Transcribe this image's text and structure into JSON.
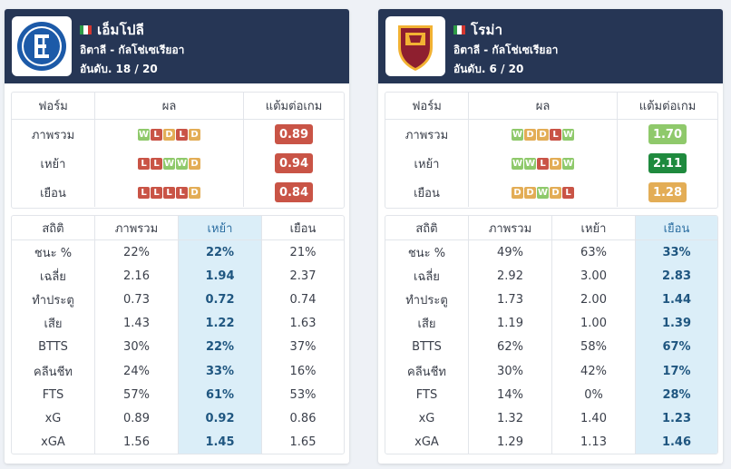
{
  "teams": [
    {
      "name": "เอ็มโปลี",
      "league": "อิตาลี - กัลโช่เซเรียอา",
      "rank": "อันดับ. 18 / 20",
      "logo_text": "EMPOLI F.C.",
      "form_headers": [
        "ฟอร์ม",
        "ผล",
        "แต้มต่อเกม"
      ],
      "form_rows": [
        {
          "label": "ภาพรวม",
          "results": [
            "W",
            "L",
            "D",
            "L",
            "D"
          ],
          "ppg": "0.89",
          "ppg_color": "#c95446"
        },
        {
          "label": "เหย้า",
          "results": [
            "L",
            "L",
            "W",
            "W",
            "D"
          ],
          "ppg": "0.94",
          "ppg_color": "#c95446"
        },
        {
          "label": "เยือน",
          "results": [
            "L",
            "L",
            "L",
            "L",
            "D"
          ],
          "ppg": "0.84",
          "ppg_color": "#c95446"
        }
      ],
      "stat_headers": [
        "สถิติ",
        "ภาพรวม",
        "เหย้า",
        "เยือน"
      ],
      "highlight_col": 2,
      "stats": [
        [
          "ชนะ %",
          "22%",
          "22%",
          "21%"
        ],
        [
          "เฉลี่ย",
          "2.16",
          "1.94",
          "2.37"
        ],
        [
          "ทำประตู",
          "0.73",
          "0.72",
          "0.74"
        ],
        [
          "เสีย",
          "1.43",
          "1.22",
          "1.63"
        ],
        [
          "BTTS",
          "30%",
          "22%",
          "37%"
        ],
        [
          "คลีนชีท",
          "24%",
          "33%",
          "16%"
        ],
        [
          "FTS",
          "57%",
          "61%",
          "53%"
        ],
        [
          "xG",
          "0.89",
          "0.92",
          "0.86"
        ],
        [
          "xGA",
          "1.56",
          "1.45",
          "1.65"
        ]
      ]
    },
    {
      "name": "โรม่า",
      "league": "อิตาลี - กัลโช่เซเรียอา",
      "rank": "อันดับ. 6 / 20",
      "logo_text": "ROMA",
      "form_headers": [
        "ฟอร์ม",
        "ผล",
        "แต้มต่อเกม"
      ],
      "form_rows": [
        {
          "label": "ภาพรวม",
          "results": [
            "W",
            "D",
            "D",
            "L",
            "W"
          ],
          "ppg": "1.70",
          "ppg_color": "#8fc96b"
        },
        {
          "label": "เหย้า",
          "results": [
            "W",
            "W",
            "L",
            "D",
            "W"
          ],
          "ppg": "2.11",
          "ppg_color": "#1f8a3e"
        },
        {
          "label": "เยือน",
          "results": [
            "D",
            "D",
            "W",
            "D",
            "L"
          ],
          "ppg": "1.28",
          "ppg_color": "#e3ad56"
        }
      ],
      "stat_headers": [
        "สถิติ",
        "ภาพรวม",
        "เหย้า",
        "เยือน"
      ],
      "highlight_col": 3,
      "stats": [
        [
          "ชนะ %",
          "49%",
          "63%",
          "33%"
        ],
        [
          "เฉลี่ย",
          "2.92",
          "3.00",
          "2.83"
        ],
        [
          "ทำประตู",
          "1.73",
          "2.00",
          "1.44"
        ],
        [
          "เสีย",
          "1.19",
          "1.00",
          "1.39"
        ],
        [
          "BTTS",
          "62%",
          "58%",
          "67%"
        ],
        [
          "คลีนชีท",
          "30%",
          "42%",
          "17%"
        ],
        [
          "FTS",
          "14%",
          "0%",
          "28%"
        ],
        [
          "xG",
          "1.32",
          "1.40",
          "1.23"
        ],
        [
          "xGA",
          "1.29",
          "1.13",
          "1.46"
        ]
      ]
    }
  ],
  "colors": {
    "header_bg": "#263655",
    "win": "#8fc96b",
    "draw": "#e3ad56",
    "loss": "#c95446",
    "highlight": "#dbeef8",
    "flag_green": "#2e9b47",
    "flag_white": "#ffffff",
    "flag_red": "#d3362f"
  }
}
